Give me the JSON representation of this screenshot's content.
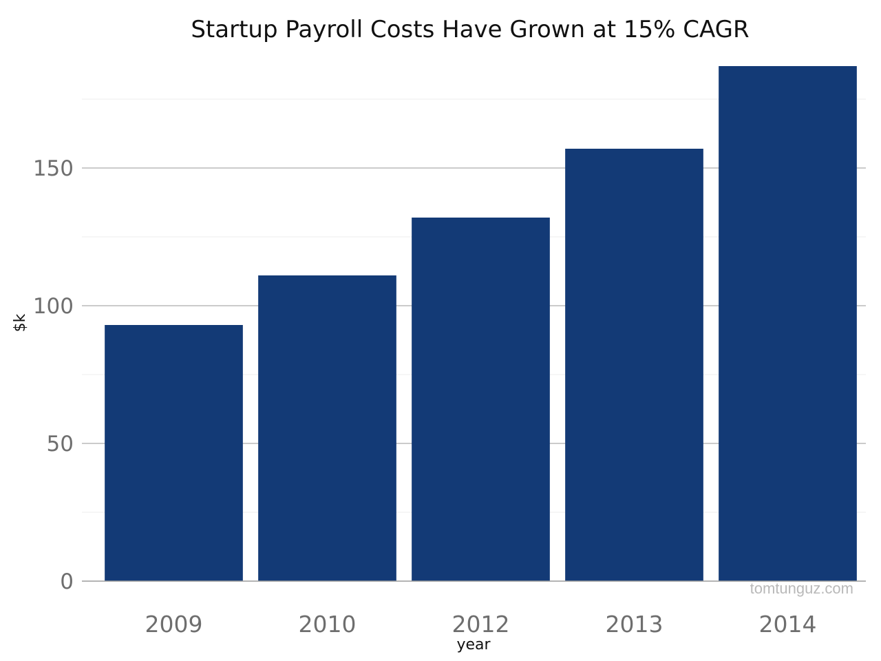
{
  "chart_data": {
    "type": "bar",
    "title": "Startup Payroll Costs Have Grown at 15% CAGR",
    "xlabel": "year",
    "ylabel": "$k",
    "categories": [
      "2009",
      "2010",
      "2012",
      "2013",
      "2014"
    ],
    "values": [
      93,
      111,
      132,
      157,
      187
    ],
    "ylim": [
      0,
      187
    ],
    "y_ticks": [
      0,
      50,
      100,
      150
    ],
    "y_tick_labels": [
      "0",
      "50",
      "100",
      "150"
    ],
    "grid": true,
    "bar_color": "#133A76"
  },
  "watermark": "tomtunguz.com"
}
